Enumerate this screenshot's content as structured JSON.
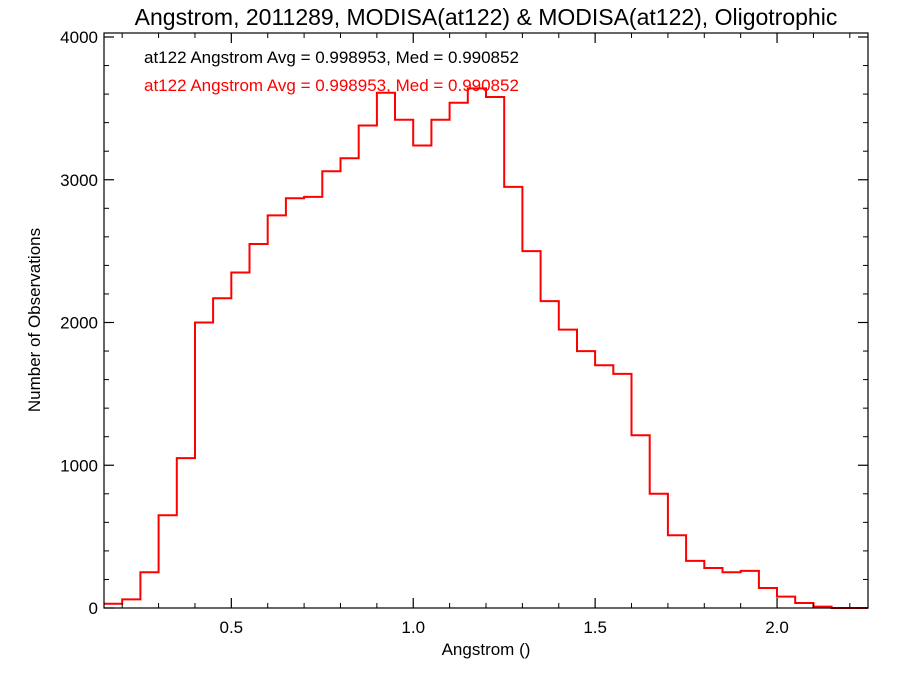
{
  "chart_data": {
    "type": "histogram",
    "title": "Angstrom, 2011289, MODISA(at122) & MODISA(at122), Oligotrophic",
    "xlabel": "Angstrom ()",
    "ylabel": "Number of Observations",
    "xlim": [
      0.15,
      2.25
    ],
    "ylim": [
      0,
      4000
    ],
    "x_ticks": [
      0.5,
      1.0,
      1.5,
      2.0
    ],
    "x_tick_labels": [
      "0.5",
      "1.0",
      "1.5",
      "2.0"
    ],
    "y_ticks": [
      0,
      1000,
      2000,
      3000,
      4000
    ],
    "y_tick_labels": [
      "0",
      "1000",
      "2000",
      "3000",
      "4000"
    ],
    "annotations": [
      {
        "text": "at122 Angstrom Avg = 0.998953, Med = 0.990852",
        "color": "#000000"
      },
      {
        "text": "at122 Angstrom Avg = 0.998953, Med = 0.990852",
        "color": "#ff0000"
      }
    ],
    "series": [
      {
        "color": "#ff0000",
        "x": [
          0.15,
          0.2,
          0.25,
          0.3,
          0.35,
          0.4,
          0.45,
          0.5,
          0.55,
          0.6,
          0.65,
          0.7,
          0.75,
          0.8,
          0.85,
          0.9,
          0.95,
          1.0,
          1.05,
          1.1,
          1.15,
          1.2,
          1.25,
          1.3,
          1.35,
          1.4,
          1.45,
          1.5,
          1.55,
          1.6,
          1.65,
          1.7,
          1.75,
          1.8,
          1.85,
          1.9,
          1.95,
          2.0,
          2.05,
          2.1,
          2.15,
          2.2
        ],
        "values": [
          30,
          60,
          250,
          650,
          1050,
          2000,
          2170,
          2350,
          2550,
          2750,
          2870,
          2880,
          3060,
          3150,
          3380,
          3610,
          3420,
          3240,
          3420,
          3540,
          3640,
          3580,
          2950,
          2500,
          2150,
          1950,
          1800,
          1700,
          1640,
          1210,
          800,
          510,
          330,
          280,
          250,
          260,
          140,
          80,
          35,
          10,
          0,
          0
        ]
      }
    ]
  }
}
